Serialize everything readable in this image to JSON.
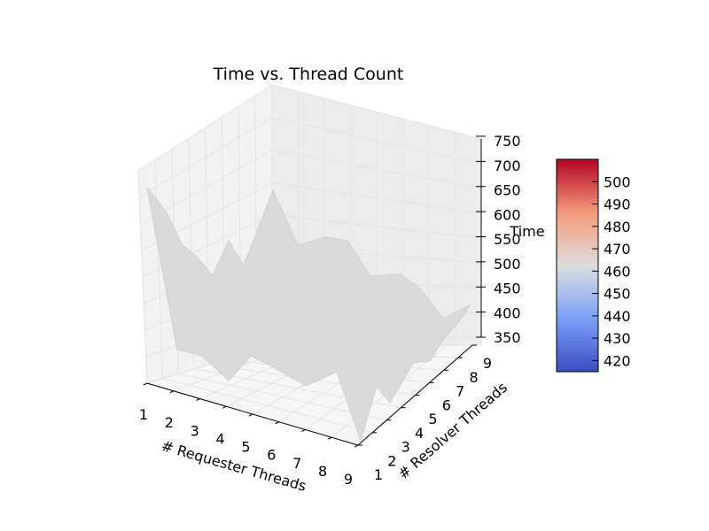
{
  "chart_data": {
    "type": "surface3d",
    "title": "Time vs. Thread Count",
    "xlabel": "# Requester Threads",
    "ylabel": "# Resolver Threads",
    "zlabel": "Time",
    "x_ticks": [
      "1",
      "2",
      "3",
      "4",
      "5",
      "6",
      "7",
      "8",
      "9"
    ],
    "y_ticks": [
      "1",
      "2",
      "3",
      "4",
      "5",
      "6",
      "7",
      "8",
      "9"
    ],
    "z_ticks": [
      "350",
      "400",
      "450",
      "500",
      "550",
      "600",
      "650",
      "700",
      "750"
    ],
    "zlim": [
      350,
      750
    ],
    "surface_color": "#dadada",
    "colorbar": {
      "ticks": [
        "420",
        "430",
        "440",
        "450",
        "460",
        "470",
        "480",
        "490",
        "500"
      ],
      "range": [
        415,
        510
      ],
      "cmap": "coolwarm",
      "colors": [
        "#3b4cc0",
        "#dddddd",
        "#b40426"
      ]
    }
  }
}
